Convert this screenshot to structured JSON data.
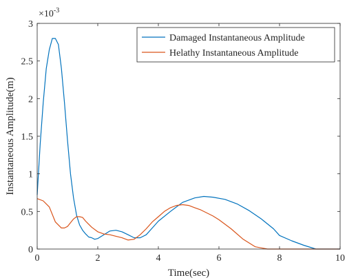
{
  "chart_data": {
    "type": "line",
    "xlabel": "Time(sec)",
    "ylabel": "Instantaneous Amplitude(m)",
    "xlim": [
      0,
      10
    ],
    "ylim": [
      0,
      0.003
    ],
    "y_exponent_label": "×10",
    "y_exponent_power": "-3",
    "xticks": [
      "0",
      "2",
      "4",
      "6",
      "8",
      "10"
    ],
    "yticks": [
      "0",
      "0.5",
      "1",
      "1.5",
      "2",
      "2.5",
      "3"
    ],
    "grid": false,
    "legend_position": "top-right",
    "series": [
      {
        "name": "Damaged Instantaneous Amplitude",
        "color": "#0072BD",
        "x": [
          0,
          0.1,
          0.2,
          0.3,
          0.4,
          0.5,
          0.6,
          0.7,
          0.8,
          0.9,
          1.0,
          1.1,
          1.2,
          1.3,
          1.4,
          1.5,
          1.6,
          1.7,
          1.8,
          1.9,
          2.0,
          2.2,
          2.4,
          2.6,
          2.8,
          3.0,
          3.2,
          3.4,
          3.6,
          3.8,
          4.0,
          4.4,
          4.8,
          5.2,
          5.5,
          5.8,
          6.2,
          6.6,
          7.0,
          7.4,
          7.8,
          8.0,
          8.4,
          8.8,
          9.2,
          9.4,
          10.0
        ],
        "values": [
          0.00072,
          0.0014,
          0.00195,
          0.0024,
          0.00265,
          0.0028,
          0.0028,
          0.00272,
          0.0024,
          0.00195,
          0.00145,
          0.001,
          0.00068,
          0.00045,
          0.00032,
          0.00025,
          0.0002,
          0.00016,
          0.00015,
          0.00013,
          0.00014,
          0.00019,
          0.00024,
          0.00025,
          0.00023,
          0.00019,
          0.00015,
          0.00015,
          0.00019,
          0.00028,
          0.00037,
          0.0005,
          0.00062,
          0.00068,
          0.0007,
          0.00069,
          0.00066,
          0.0006,
          0.00051,
          0.0004,
          0.00027,
          0.00018,
          0.00011,
          5e-05,
          0.0,
          0.0,
          0.0
        ]
      },
      {
        "name": "Helathy Instantaneous Amplitude",
        "color": "#D95319",
        "x": [
          0,
          0.2,
          0.4,
          0.6,
          0.8,
          0.9,
          1.0,
          1.1,
          1.2,
          1.3,
          1.4,
          1.5,
          1.6,
          1.7,
          1.8,
          2.0,
          2.2,
          2.4,
          2.6,
          2.8,
          3.0,
          3.2,
          3.4,
          3.6,
          3.8,
          4.0,
          4.2,
          4.4,
          4.6,
          4.8,
          5.0,
          5.2,
          5.4,
          5.6,
          5.8,
          6.0,
          6.4,
          6.8,
          7.2,
          7.6,
          8.0,
          8.4,
          10.0
        ],
        "values": [
          0.00067,
          0.00064,
          0.00056,
          0.00036,
          0.00028,
          0.00028,
          0.0003,
          0.00035,
          0.0004,
          0.00043,
          0.00043,
          0.00042,
          0.00037,
          0.00033,
          0.00029,
          0.00023,
          0.0002,
          0.00019,
          0.00017,
          0.00015,
          0.00012,
          0.00013,
          0.00019,
          0.00027,
          0.00036,
          0.00043,
          0.0005,
          0.00055,
          0.00058,
          0.00059,
          0.00058,
          0.00055,
          0.00052,
          0.00048,
          0.00044,
          0.00039,
          0.00027,
          0.00013,
          3e-05,
          0.0,
          0.0,
          0.0,
          0.0
        ]
      }
    ]
  }
}
